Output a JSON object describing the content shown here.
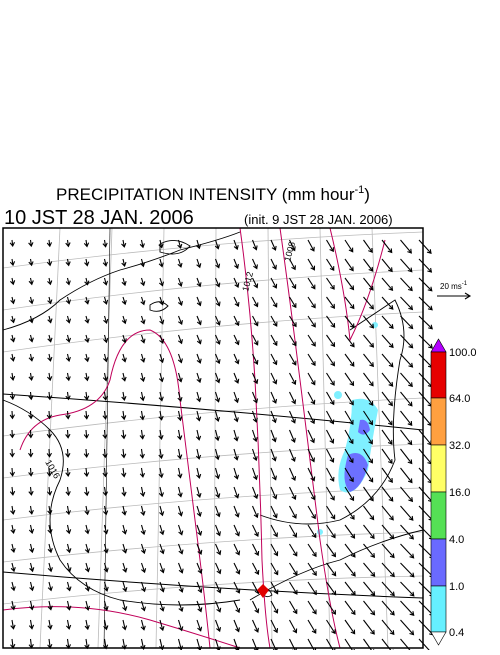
{
  "title": {
    "text": "PRECIPITATION INTENSITY (mm hour",
    "exponent": "-1",
    "close": ")"
  },
  "valid_time": "10 JST 28 JAN. 2006",
  "init_time": "(init. 9 JST 28 JAN. 2006)",
  "wind_legend": {
    "text": "20 ms",
    "exponent": "-1"
  },
  "isobar_labels": [
    "1016",
    "1012",
    "1008"
  ],
  "colorbar": {
    "labels": [
      "100.0",
      "64.0",
      "32.0",
      "16.0",
      "4.0",
      "1.0",
      "0.4"
    ]
  }
}
